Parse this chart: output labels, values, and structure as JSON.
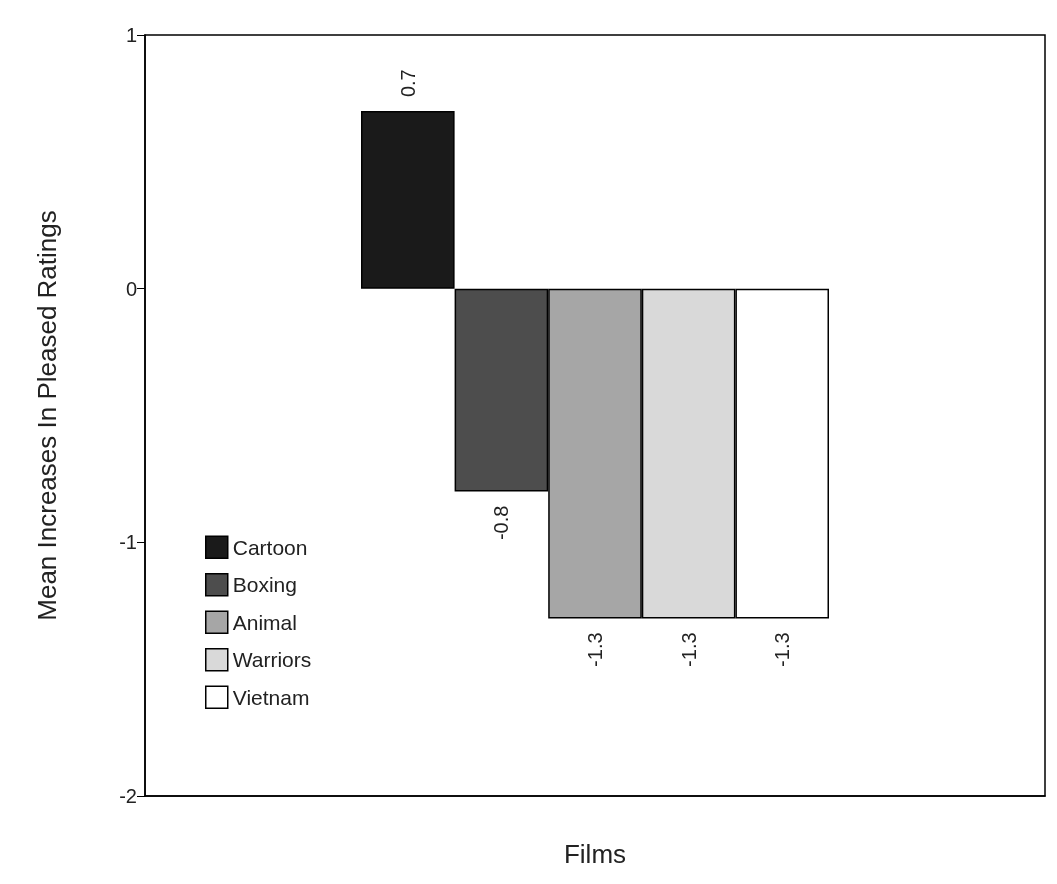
{
  "chart_data": {
    "type": "bar",
    "xlabel": "Films",
    "ylabel": "Mean Increases In Pleased Ratings",
    "categories": [
      null
    ],
    "series": [
      {
        "name": "Cartoon",
        "color": "#1a1a1a",
        "values": [
          0.7
        ]
      },
      {
        "name": "Boxing",
        "color": "#4d4d4d",
        "values": [
          -0.8
        ]
      },
      {
        "name": "Animal",
        "color": "#a6a6a6",
        "values": [
          -1.3
        ]
      },
      {
        "name": "Warriors",
        "color": "#d9d9d9",
        "values": [
          -1.3
        ]
      },
      {
        "name": "Vietnam",
        "color": "#ffffff",
        "values": [
          -1.3
        ]
      }
    ],
    "ylim": [
      -2,
      1
    ],
    "yticks": [
      -2,
      -1,
      0,
      1
    ],
    "data_labels": true,
    "grid": false,
    "legend": "bottom left"
  }
}
